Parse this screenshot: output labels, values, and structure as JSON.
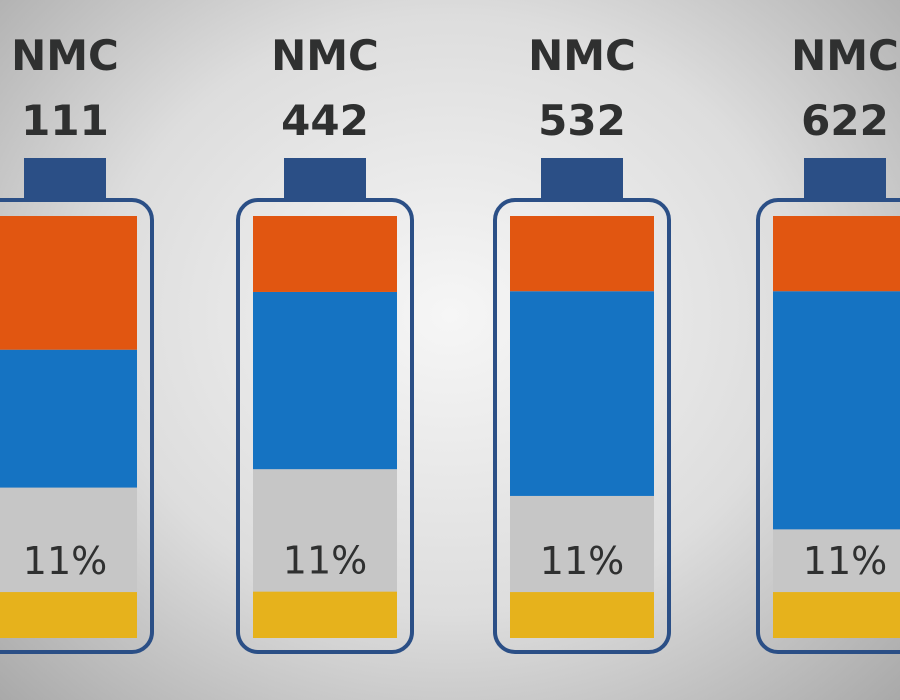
{
  "chart_data": {
    "type": "bar",
    "stacked": true,
    "categories": [
      {
        "line1": "NMC",
        "line2": "111"
      },
      {
        "line1": "NMC",
        "line2": "442"
      },
      {
        "line1": "NMC",
        "line2": "532"
      },
      {
        "line1": "NMC",
        "line2": "622"
      }
    ],
    "segments_bottom_to_top": [
      {
        "color": "#e6b21c",
        "values": [
          0.11,
          0.11,
          0.11,
          0.11
        ]
      },
      {
        "color": "#c6c6c6",
        "values": [
          0.25,
          0.29,
          0.23,
          0.15
        ]
      },
      {
        "color": "#1573c2",
        "values": [
          0.33,
          0.42,
          0.49,
          0.57
        ]
      },
      {
        "color": "#e15611",
        "values": [
          0.32,
          0.18,
          0.18,
          0.18
        ]
      }
    ],
    "segment_labels": [
      {
        "segment": 1,
        "text": [
          "11%",
          "11%",
          "11%",
          "11%"
        ]
      }
    ],
    "cap_color": "#2b4f86",
    "outline_color": "#2b4f86"
  }
}
